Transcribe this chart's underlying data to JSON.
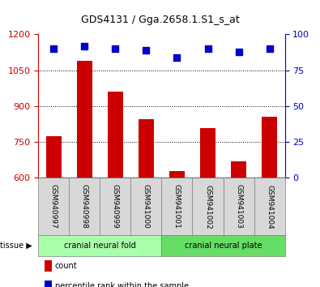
{
  "title": "GDS4131 / Gga.2658.1.S1_s_at",
  "samples": [
    "GSM940997",
    "GSM940998",
    "GSM940999",
    "GSM941000",
    "GSM941001",
    "GSM941002",
    "GSM941003",
    "GSM941004"
  ],
  "bar_values": [
    775,
    1090,
    960,
    845,
    630,
    810,
    670,
    855
  ],
  "percentile_values": [
    90,
    92,
    90,
    89,
    84,
    90,
    88,
    90
  ],
  "bar_color": "#cc0000",
  "percentile_color": "#0000cc",
  "ylim_left": [
    600,
    1200
  ],
  "ylim_right": [
    0,
    100
  ],
  "yticks_left": [
    600,
    750,
    900,
    1050,
    1200
  ],
  "yticks_right": [
    0,
    25,
    50,
    75,
    100
  ],
  "grid_values": [
    750,
    900,
    1050
  ],
  "tissue_groups": [
    {
      "label": "cranial neural fold",
      "start": 0,
      "end": 4,
      "color": "#aaffaa"
    },
    {
      "label": "cranial neural plate",
      "start": 4,
      "end": 8,
      "color": "#66dd66"
    }
  ],
  "tissue_label": "tissue",
  "legend_items": [
    {
      "label": "count",
      "color": "#cc0000"
    },
    {
      "label": "percentile rank within the sample",
      "color": "#0000cc"
    }
  ],
  "left_axis_color": "#cc0000",
  "right_axis_color": "#0000cc",
  "bar_width": 0.5,
  "sample_box_color": "#d8d8d8"
}
